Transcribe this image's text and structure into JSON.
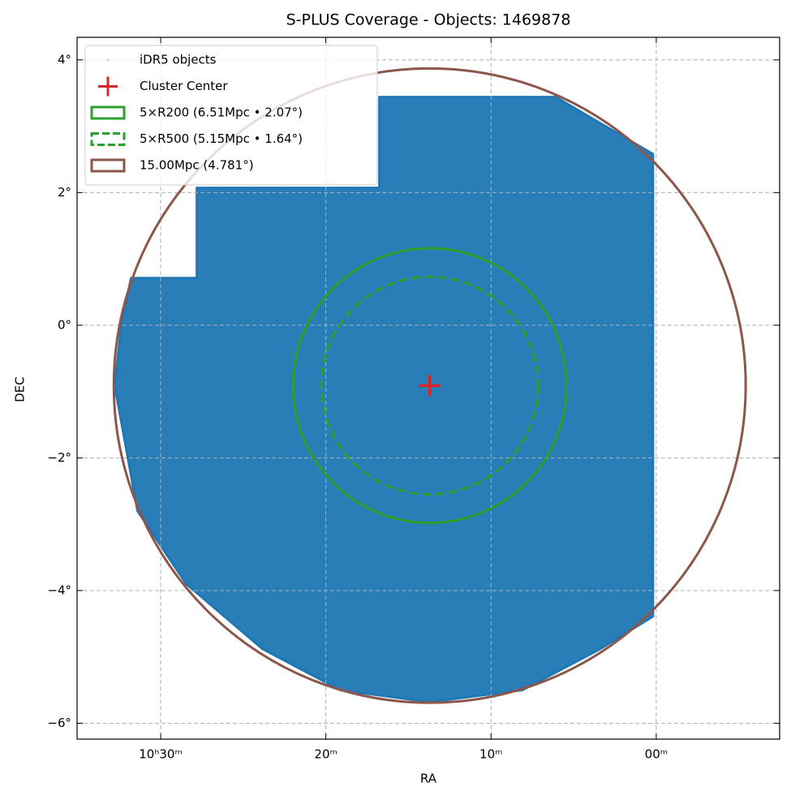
{
  "chart_data": {
    "type": "sky",
    "title": "S-PLUS Coverage - Objects: 1469878",
    "xlabel": "RA",
    "ylabel": "DEC",
    "xlim": [
      35.06,
      -7.47
    ],
    "ylim": [
      -6.24,
      4.34
    ],
    "xticks": [
      {
        "value": 30,
        "label": "10ʰ30ᵐ"
      },
      {
        "value": 20,
        "label": "20ᵐ"
      },
      {
        "value": 10,
        "label": "10ᵐ"
      },
      {
        "value": 0,
        "label": "00ᵐ"
      }
    ],
    "yticks": [
      {
        "value": 4,
        "label": "4°"
      },
      {
        "value": 2,
        "label": "2°"
      },
      {
        "value": 0,
        "label": "0°"
      },
      {
        "value": -2,
        "label": "−2°"
      },
      {
        "value": -4,
        "label": "−4°"
      },
      {
        "value": -6,
        "label": "−6°"
      }
    ],
    "grid": true,
    "legend": "upper left",
    "footprint": {
      "name": "iDR5 objects",
      "color": "#1f77b4",
      "ra": [
        31.79,
        27.81,
        27.81,
        16.76,
        16.76,
        6.09,
        0.2,
        0.2,
        3.39,
        8.11,
        13.71,
        19.12,
        23.83,
        28.45,
        31.4,
        32.78,
        32.38
      ],
      "dec": [
        0.71,
        0.71,
        2.07,
        2.07,
        3.44,
        3.44,
        2.58,
        -4.39,
        -4.88,
        -5.5,
        -5.68,
        -5.5,
        -4.88,
        -3.9,
        -2.8,
        -0.91,
        0.01
      ]
    },
    "center": {
      "name": "Cluster Center",
      "color": "#d62728",
      "ra": 13.71,
      "dec": -0.91
    },
    "circles": [
      {
        "name": "5×R200 (6.51Mpc • 2.07°)",
        "color": "#2ca02c",
        "radius": 2.07,
        "linestyle": "solid"
      },
      {
        "name": "5×R500 (5.15Mpc • 1.64°)",
        "color": "#2ca02c",
        "radius": 1.64,
        "linestyle": "dashed"
      },
      {
        "name": "15.00Mpc (4.781°)",
        "color": "#8c564b",
        "radius": 4.781,
        "linestyle": "solid"
      }
    ]
  }
}
